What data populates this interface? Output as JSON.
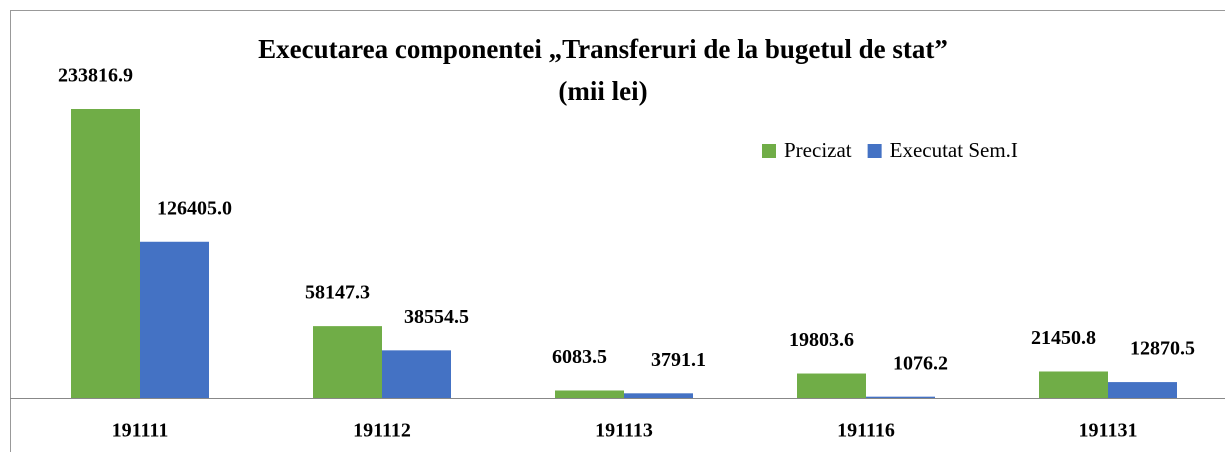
{
  "chart_data": {
    "type": "bar",
    "title": "Executarea componentei „Transferuri de la bugetul de stat”",
    "subtitle": "(mii lei)",
    "categories": [
      "191111",
      "191112",
      "191113",
      "191116",
      "191131"
    ],
    "series": [
      {
        "name": "Precizat",
        "color": "#70ad47",
        "values": [
          233816.9,
          58147.3,
          6083.5,
          19803.6,
          21450.8
        ],
        "value_labels": [
          "233816.9",
          "58147.3",
          "6083.5",
          "19803.6",
          "21450.8"
        ]
      },
      {
        "name": "Executat Sem.I",
        "color": "#4472c4",
        "values": [
          126405.0,
          38554.5,
          3791.1,
          1076.2,
          12870.5
        ],
        "value_labels": [
          "126405.0",
          "38554.5",
          "3791.1",
          "1076.2",
          "12870.5"
        ]
      }
    ],
    "legend": "top-right"
  }
}
